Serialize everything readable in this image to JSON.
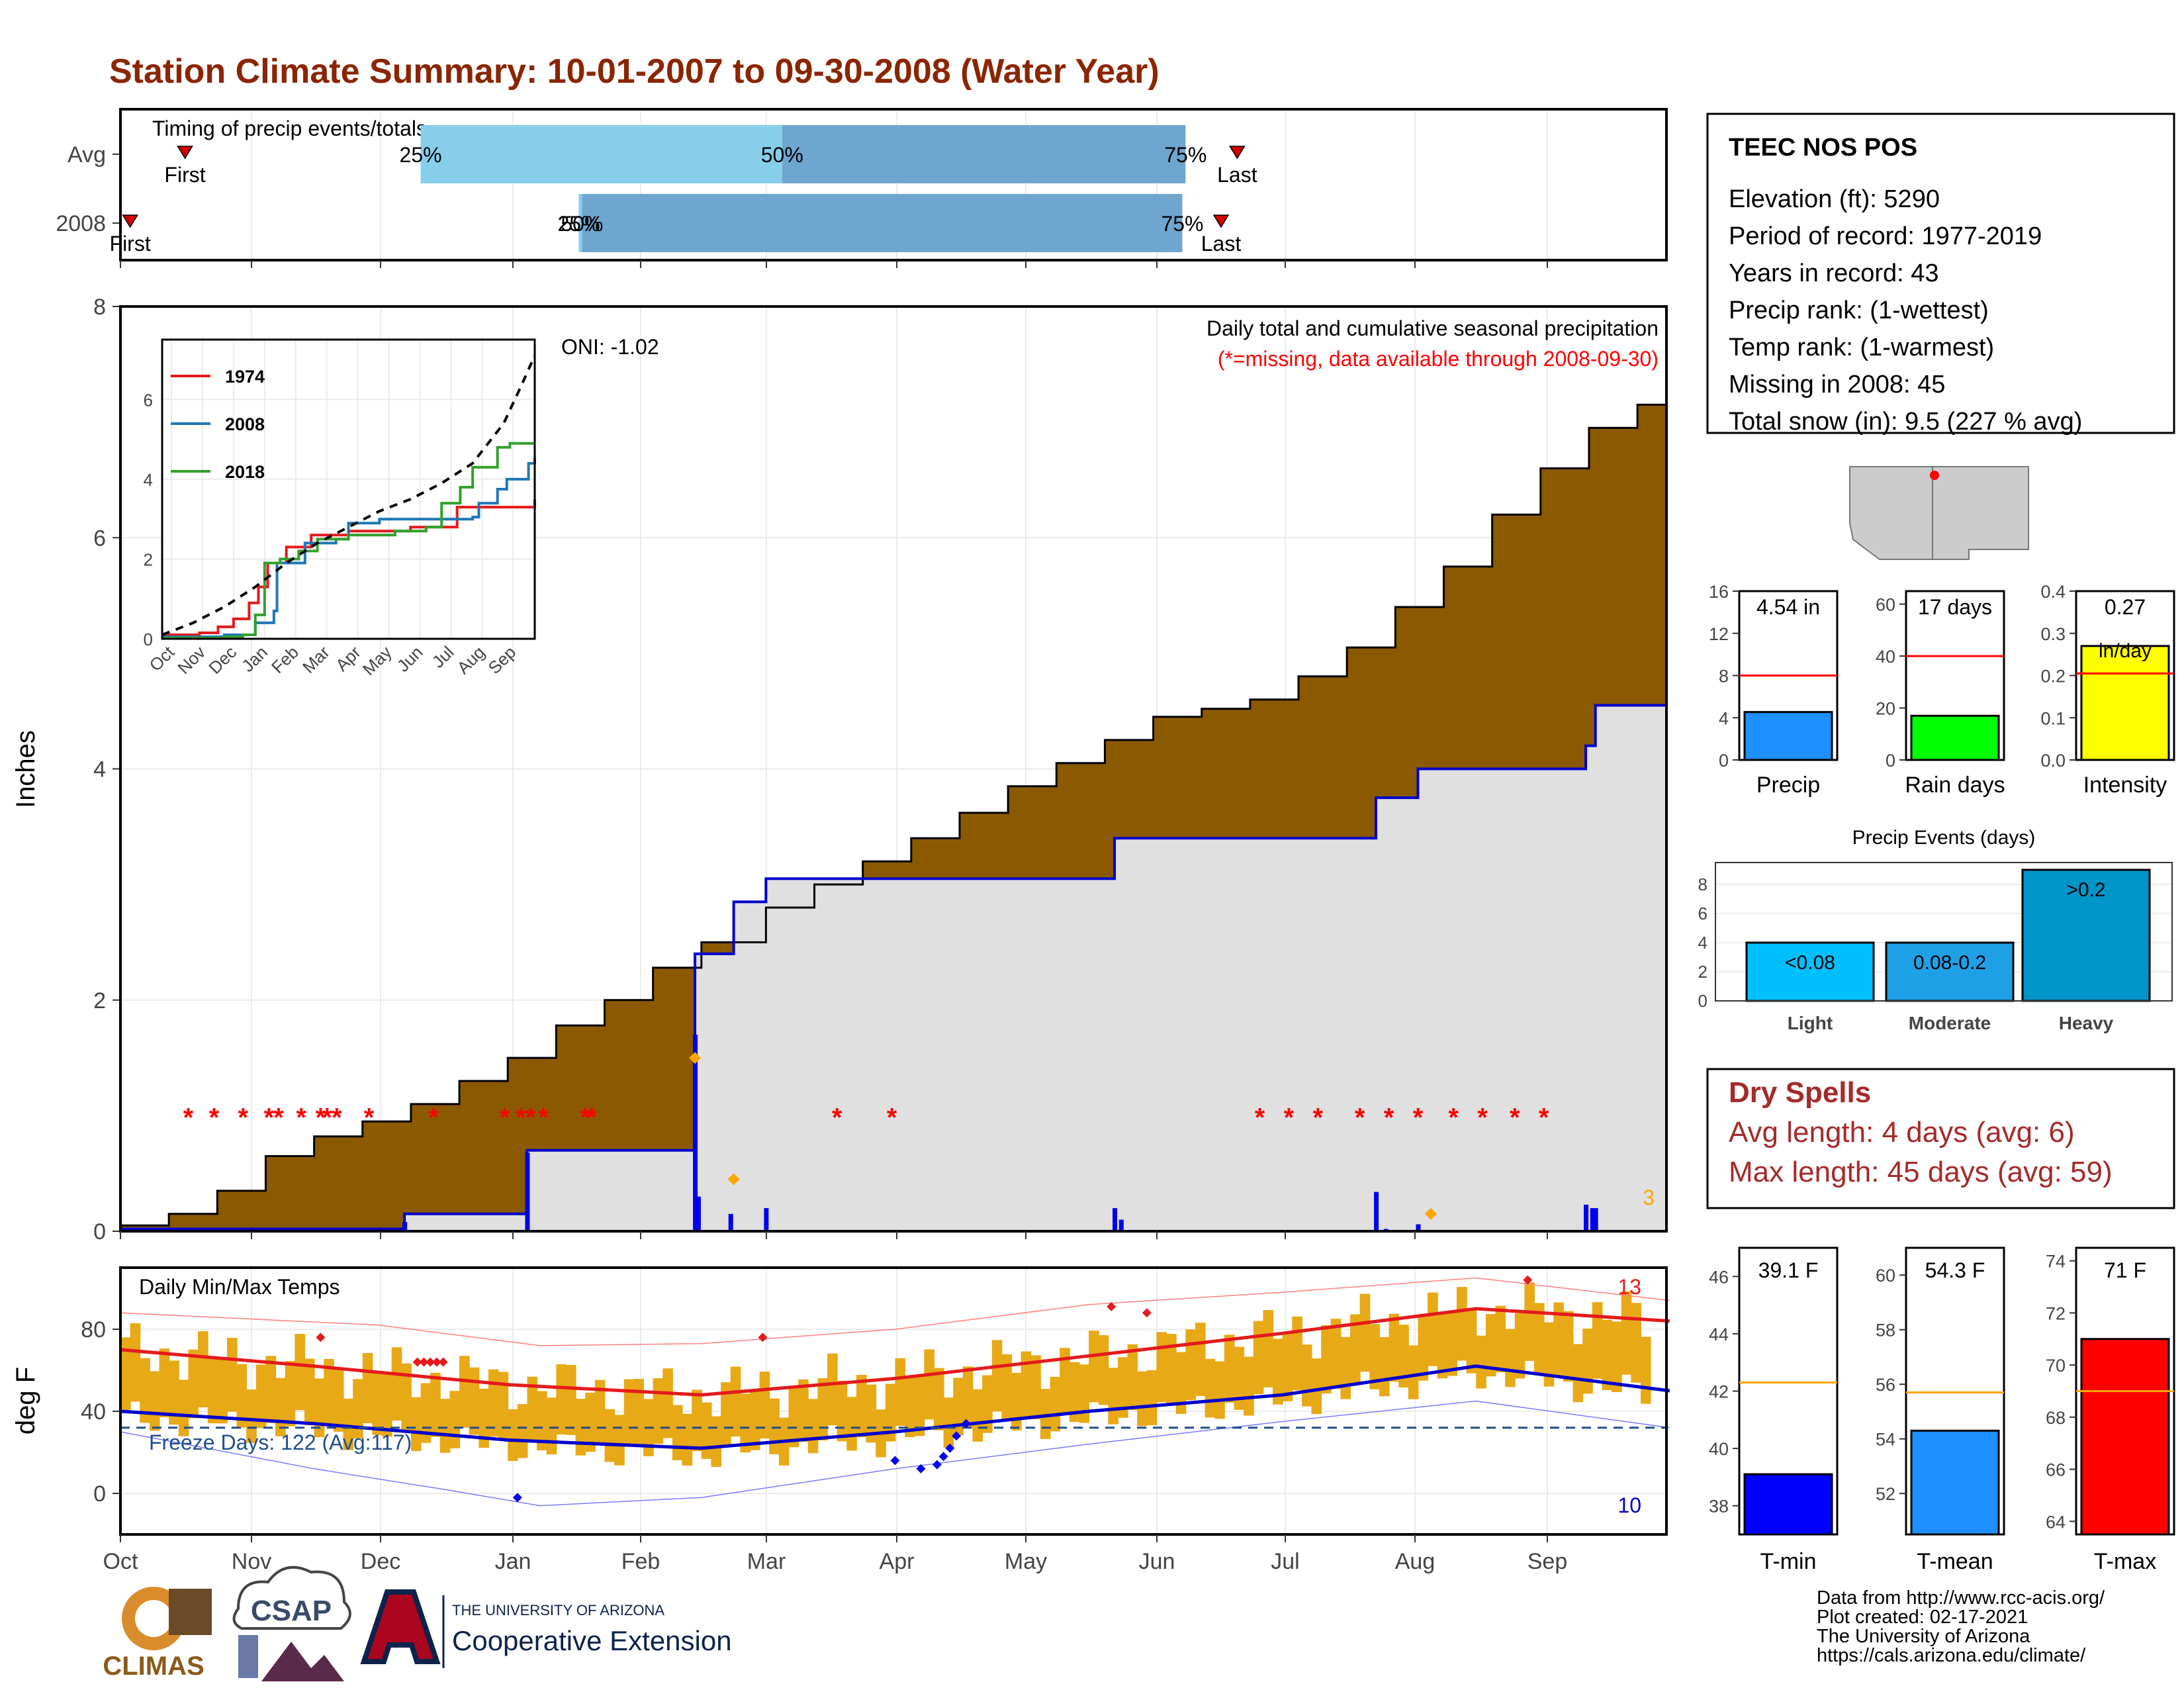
{
  "page_title": "Station Climate Summary: 10-01-2007 to 09-30-2008 (Water Year)",
  "months": [
    "Oct",
    "Nov",
    "Dec",
    "Jan",
    "Feb",
    "Mar",
    "Apr",
    "May",
    "Jun",
    "Jul",
    "Aug",
    "Sep"
  ],
  "timing": {
    "title": "Timing of precip events/totals",
    "rows": [
      {
        "label": "Avg",
        "first_day": 20,
        "p25_day": 93,
        "p50_day": 205,
        "p75_day": 330,
        "last_day": 346,
        "first_label": "First",
        "last_label": "Last",
        "p25_label": "25%",
        "p50_label": "50%",
        "p75_label": "75%"
      },
      {
        "label": "2008",
        "first_day": 3,
        "p25_day": 142,
        "p50_day": 143,
        "p75_day": 329,
        "last_day": 341,
        "first_label": "First",
        "last_label": "Last",
        "p25_label": "25%",
        "p50_label": "50%",
        "p75_label": "75%"
      }
    ],
    "colors": {
      "q1": "#87ceeb",
      "q2": "#6fa6cf",
      "marker": "#d40000"
    }
  },
  "precip": {
    "ylabel": "Inches",
    "title": "Daily total and cumulative seasonal precipitation",
    "note": "(*=missing, data available through 2008-09-30)",
    "oni": "ONI: -1.02",
    "corner_count": "3",
    "yticks": [
      "0",
      "2",
      "4",
      "6",
      "8"
    ],
    "ylim": [
      0,
      8
    ],
    "avg_cumulative": [
      [
        0,
        0.05
      ],
      [
        15,
        0.15
      ],
      [
        30,
        0.35
      ],
      [
        45,
        0.65
      ],
      [
        60,
        0.82
      ],
      [
        75,
        0.95
      ],
      [
        90,
        1.1
      ],
      [
        105,
        1.3
      ],
      [
        120,
        1.5
      ],
      [
        135,
        1.78
      ],
      [
        150,
        2.0
      ],
      [
        165,
        2.28
      ],
      [
        180,
        2.5
      ],
      [
        200,
        2.8
      ],
      [
        215,
        3.0
      ],
      [
        230,
        3.2
      ],
      [
        245,
        3.4
      ],
      [
        260,
        3.62
      ],
      [
        275,
        3.85
      ],
      [
        290,
        4.05
      ],
      [
        305,
        4.25
      ],
      [
        320,
        4.45
      ],
      [
        335,
        4.52
      ],
      [
        350,
        4.6
      ],
      [
        365,
        4.8
      ],
      [
        380,
        5.05
      ],
      [
        395,
        5.4
      ],
      [
        410,
        5.75
      ],
      [
        425,
        6.2
      ],
      [
        440,
        6.6
      ],
      [
        455,
        6.95
      ],
      [
        470,
        7.15
      ],
      [
        479,
        7.3
      ]
    ],
    "obs_cumulative": [
      [
        0,
        0.02
      ],
      [
        88,
        0.02
      ],
      [
        88,
        0.15
      ],
      [
        126,
        0.15
      ],
      [
        126,
        0.7
      ],
      [
        178,
        0.7
      ],
      [
        178,
        2.4
      ],
      [
        190,
        2.4
      ],
      [
        190,
        2.85
      ],
      [
        200,
        2.85
      ],
      [
        200,
        3.05
      ],
      [
        308,
        3.05
      ],
      [
        308,
        3.4
      ],
      [
        389,
        3.4
      ],
      [
        389,
        3.75
      ],
      [
        402,
        3.75
      ],
      [
        402,
        4.0
      ],
      [
        454,
        4.0
      ],
      [
        454,
        4.2
      ],
      [
        457,
        4.2
      ],
      [
        457,
        4.55
      ],
      [
        479,
        4.55
      ]
    ],
    "daily_bars": [
      [
        88,
        0.08
      ],
      [
        126,
        0.68
      ],
      [
        178,
        1.7
      ],
      [
        179,
        0.3
      ],
      [
        189,
        0.15
      ],
      [
        200,
        0.2
      ],
      [
        308,
        0.2
      ],
      [
        310,
        0.1
      ],
      [
        389,
        0.34
      ],
      [
        392,
        0.02
      ],
      [
        402,
        0.06
      ],
      [
        454,
        0.23
      ],
      [
        456,
        0.2
      ],
      [
        457,
        0.2
      ]
    ],
    "snow_marks": [
      [
        178,
        1.5
      ],
      [
        190,
        0.45
      ],
      [
        406,
        0.15
      ]
    ],
    "missing_days": [
      21,
      29,
      38,
      46,
      49,
      56,
      62,
      64,
      67,
      77,
      97,
      119,
      124,
      127,
      131,
      144,
      146,
      222,
      239,
      353,
      362,
      371,
      384,
      393,
      402,
      413,
      422,
      432,
      441
    ]
  },
  "inset": {
    "yticks": [
      "0",
      "2",
      "4",
      "6"
    ],
    "ylim": [
      0,
      7.5
    ],
    "series": [
      {
        "name": "1974",
        "color": "#e41a1c",
        "points": [
          [
            0,
            0.1
          ],
          [
            12,
            0.15
          ],
          [
            18,
            0.3
          ],
          [
            23,
            0.5
          ],
          [
            28,
            0.9
          ],
          [
            31,
            1.3
          ],
          [
            34,
            1.9
          ],
          [
            40,
            2.3
          ],
          [
            48,
            2.6
          ],
          [
            60,
            2.7
          ],
          [
            80,
            2.8
          ],
          [
            95,
            3.3
          ],
          [
            120,
            3.5
          ]
        ]
      },
      {
        "name": "2008",
        "color": "#1f78b4",
        "points": [
          [
            0,
            0.05
          ],
          [
            20,
            0.1
          ],
          [
            30,
            0.4
          ],
          [
            36,
            0.7
          ],
          [
            37,
            1.9
          ],
          [
            46,
            2.4
          ],
          [
            56,
            2.5
          ],
          [
            60,
            2.9
          ],
          [
            70,
            3.0
          ],
          [
            100,
            3.05
          ],
          [
            102,
            3.4
          ],
          [
            108,
            3.75
          ],
          [
            111,
            4.0
          ],
          [
            118,
            4.4
          ],
          [
            120,
            4.55
          ]
        ]
      },
      {
        "name": "2018",
        "color": "#33a02c",
        "points": [
          [
            0,
            0.02
          ],
          [
            20,
            0.05
          ],
          [
            26,
            0.1
          ],
          [
            30,
            0.6
          ],
          [
            33,
            1.9
          ],
          [
            38,
            2.0
          ],
          [
            44,
            2.2
          ],
          [
            50,
            2.5
          ],
          [
            60,
            2.6
          ],
          [
            75,
            2.7
          ],
          [
            85,
            2.8
          ],
          [
            90,
            3.4
          ],
          [
            96,
            3.8
          ],
          [
            100,
            4.3
          ],
          [
            108,
            4.8
          ],
          [
            112,
            4.9
          ],
          [
            120,
            4.9
          ]
        ]
      }
    ],
    "avg_dashed": [
      [
        0,
        0.1
      ],
      [
        10,
        0.4
      ],
      [
        20,
        0.8
      ],
      [
        30,
        1.3
      ],
      [
        40,
        1.9
      ],
      [
        50,
        2.4
      ],
      [
        60,
        2.8
      ],
      [
        70,
        3.2
      ],
      [
        80,
        3.5
      ],
      [
        90,
        3.9
      ],
      [
        100,
        4.4
      ],
      [
        110,
        5.4
      ],
      [
        116,
        6.4
      ],
      [
        120,
        7.1
      ]
    ]
  },
  "temps": {
    "title": "Daily Min/Max Temps",
    "ylabel": "deg F",
    "yticks": [
      "0",
      "40",
      "80"
    ],
    "ylim": [
      -20,
      110
    ],
    "freeze_label": "Freeze Days: 122 (Avg:117)",
    "freeze_temp": 32,
    "max_count_label": "13",
    "min_count_label": "10",
    "avg_max": [
      [
        0,
        70
      ],
      [
        60,
        62
      ],
      [
        120,
        53
      ],
      [
        180,
        48
      ],
      [
        240,
        56
      ],
      [
        300,
        67
      ],
      [
        360,
        78
      ],
      [
        420,
        90
      ],
      [
        480,
        84
      ]
    ],
    "avg_min": [
      [
        0,
        40
      ],
      [
        60,
        34
      ],
      [
        120,
        26
      ],
      [
        180,
        22
      ],
      [
        240,
        30
      ],
      [
        300,
        40
      ],
      [
        360,
        48
      ],
      [
        420,
        62
      ],
      [
        480,
        50
      ]
    ],
    "rec_max": [
      [
        0,
        88
      ],
      [
        40,
        85
      ],
      [
        80,
        82
      ],
      [
        130,
        72
      ],
      [
        180,
        73
      ],
      [
        240,
        80
      ],
      [
        300,
        92
      ],
      [
        360,
        98
      ],
      [
        420,
        105
      ],
      [
        480,
        94
      ]
    ],
    "rec_min": [
      [
        0,
        30
      ],
      [
        60,
        12
      ],
      [
        100,
        2
      ],
      [
        130,
        -6
      ],
      [
        180,
        -2
      ],
      [
        240,
        12
      ],
      [
        300,
        24
      ],
      [
        360,
        35
      ],
      [
        420,
        45
      ],
      [
        480,
        32
      ]
    ],
    "max_markers": [
      [
        62,
        76
      ],
      [
        92,
        64
      ],
      [
        94,
        64
      ],
      [
        96,
        64
      ],
      [
        98,
        64
      ],
      [
        100,
        64
      ],
      [
        199,
        76
      ],
      [
        307,
        91
      ],
      [
        318,
        88
      ],
      [
        436,
        104
      ]
    ],
    "min_markers": [
      [
        123,
        -2
      ],
      [
        240,
        16
      ],
      [
        248,
        12
      ],
      [
        253,
        14
      ],
      [
        255,
        18
      ],
      [
        257,
        22
      ],
      [
        259,
        28
      ],
      [
        262,
        34
      ]
    ]
  },
  "stats": {
    "station": "TEEC NOS POS",
    "lines": [
      "Elevation (ft): 5290",
      "Period of record: 1977-2019",
      "Years in record: 43",
      "Precip rank:  (1-wettest)",
      "Temp rank:  (1-warmest)",
      "Missing in 2008: 45",
      "Total snow (in): 9.5 (227 % avg)"
    ]
  },
  "map": {
    "region": "Arizona / New Mexico",
    "marker_color": "#ff0000"
  },
  "mini_precip": [
    {
      "label": "Precip",
      "value_label": "4.54 in",
      "value": 4.54,
      "avg": 8,
      "ymax": 16,
      "yticks": [
        "0",
        "4",
        "8",
        "12",
        "16"
      ],
      "color": "#1e90ff"
    },
    {
      "label": "Rain days",
      "value_label": "17 days",
      "value": 17,
      "avg": 40,
      "ymax": 65,
      "yticks": [
        "0",
        "20",
        "40",
        "60"
      ],
      "color": "#00ff00"
    },
    {
      "label": "Intensity",
      "value_label": "0.27",
      "value_label2": "in/day",
      "value": 0.27,
      "avg": 0.205,
      "ymax": 0.4,
      "yticks": [
        "0.0",
        "0.1",
        "0.2",
        "0.3",
        "0.4"
      ],
      "color": "#ffff00"
    }
  ],
  "precip_events": {
    "title": "Precip Events (days)",
    "ymax": 9.5,
    "yticks": [
      "0",
      "2",
      "4",
      "6",
      "8"
    ],
    "bars": [
      {
        "label": "Light",
        "inside": "<0.08",
        "value": 4,
        "color": "#00bfff"
      },
      {
        "label": "Moderate",
        "inside": "0.08-0.2",
        "value": 4,
        "color": "#1ea0e6"
      },
      {
        "label": "Heavy",
        "inside": ">0.2",
        "value": 9,
        "color": "#0095c8"
      }
    ]
  },
  "dry_spells": {
    "title": "Dry Spells",
    "lines": [
      "Avg length: 4 days (avg: 6)",
      "Max length: 45 days (avg: 59)"
    ],
    "color": "#a52a2a"
  },
  "mini_temps": [
    {
      "label": "T-min",
      "value_label": "39.1 F",
      "value": 39.1,
      "avg": 42.3,
      "ymin": 37,
      "ymax": 47,
      "yticks": [
        "38",
        "40",
        "42",
        "44",
        "46"
      ],
      "color": "#0000ff"
    },
    {
      "label": "T-mean",
      "value_label": "54.3 F",
      "value": 54.3,
      "avg": 55.7,
      "ymin": 50.5,
      "ymax": 61,
      "yticks": [
        "52",
        "54",
        "56",
        "58",
        "60"
      ],
      "color": "#1e90ff"
    },
    {
      "label": "T-max",
      "value_label": "71 F",
      "value": 71,
      "avg": 69,
      "ymin": 63.5,
      "ymax": 74.5,
      "yticks": [
        "64",
        "66",
        "68",
        "70",
        "72",
        "74"
      ],
      "color": "#ff0000"
    }
  ],
  "footer": {
    "lines": [
      "Data from http://www.rcc-acis.org/",
      "Plot created: 02-17-2021",
      "The University of Arizona",
      "https://cals.arizona.edu/climate/"
    ],
    "climas": "CLIMAS",
    "csap": "CSAP",
    "ua_small": "THE UNIVERSITY OF ARIZONA",
    "ua_big": "Cooperative Extension"
  }
}
